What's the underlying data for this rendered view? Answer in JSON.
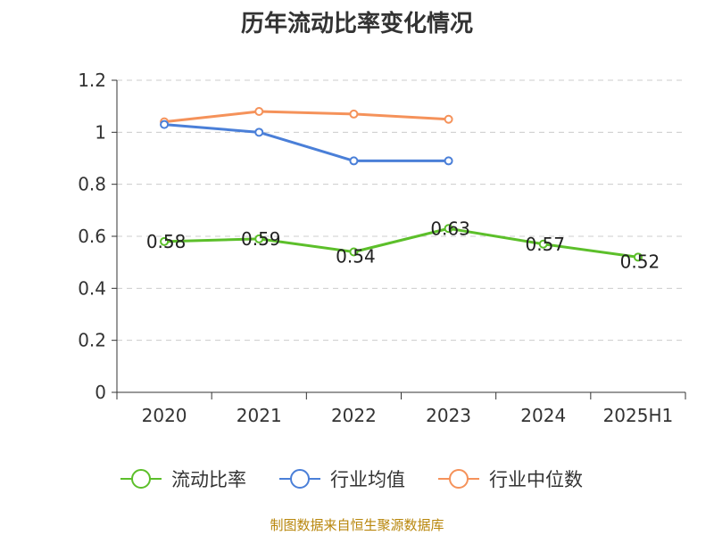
{
  "chart_data": {
    "type": "line",
    "title": "历年流动比率变化情况",
    "categories": [
      "2020",
      "2021",
      "2022",
      "2023",
      "2024",
      "2025H1"
    ],
    "ylim": [
      0,
      1.2
    ],
    "yticks": [
      "0",
      "0.2",
      "0.4",
      "0.6",
      "0.8",
      "1",
      "1.2"
    ],
    "grid": true,
    "legend_position": "bottom",
    "series": [
      {
        "name": "流动比率",
        "color": "#5cbf2a",
        "values": [
          0.58,
          0.59,
          0.54,
          0.63,
          0.57,
          0.52
        ],
        "labels": [
          "0.58",
          "0.59",
          "0.54",
          "0.63",
          "0.57",
          "0.52"
        ]
      },
      {
        "name": "行业均值",
        "color": "#4a7fd8",
        "values": [
          1.03,
          1.0,
          0.89,
          0.89,
          null,
          null
        ]
      },
      {
        "name": "行业中位数",
        "color": "#f5925a",
        "values": [
          1.04,
          1.08,
          1.07,
          1.05,
          null,
          null
        ]
      }
    ]
  },
  "footer": {
    "source": "制图数据来自恒生聚源数据库"
  }
}
